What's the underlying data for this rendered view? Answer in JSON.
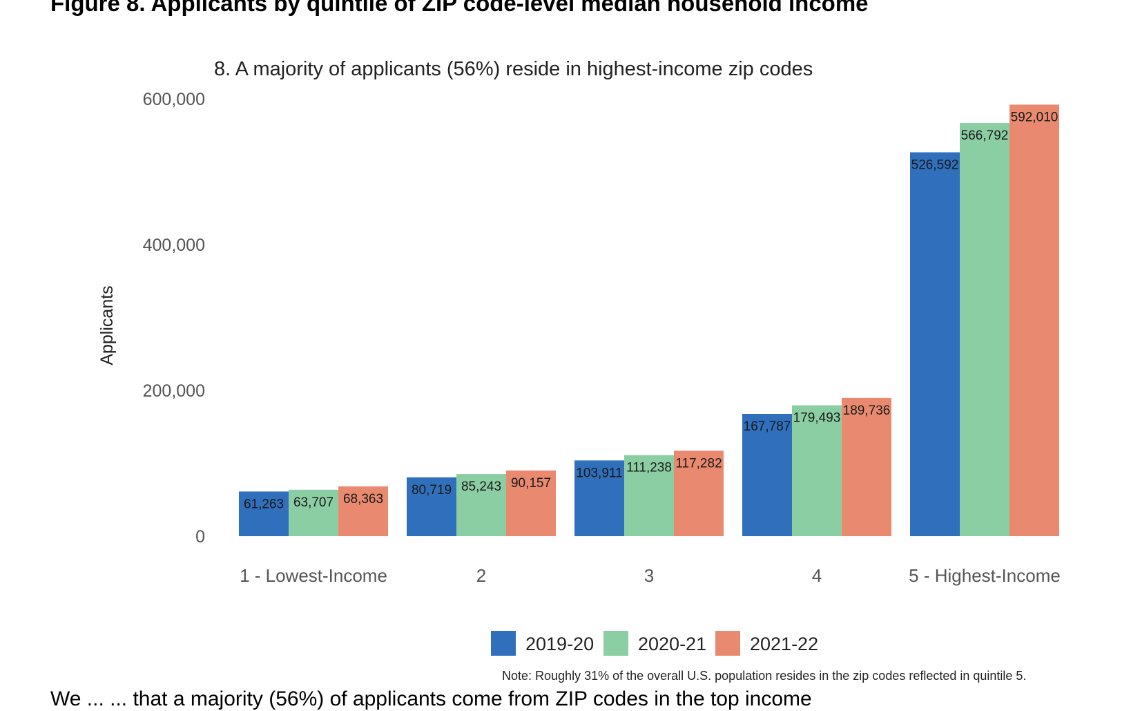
{
  "heading": "Figure 8. Applicants by quintile of ZIP code-level median household income",
  "note": "Note: Roughly 31% of the overall U.S. population resides in the zip codes reflected in quintile 5.",
  "body_text_fragment": "We ... ... that a majority (56%) of applicants come from ZIP codes in the top income",
  "colors": {
    "2019-20": "#2f6fbc",
    "2020-21": "#8ccea3",
    "2021-22": "#e98a70"
  },
  "chart_data": {
    "type": "bar",
    "title": "8. A majority of applicants (56%) reside in highest-income zip codes",
    "ylabel": "Applicants",
    "xlabel": "",
    "ylim": [
      0,
      600000
    ],
    "yticks": [
      "0",
      "200,000",
      "400,000",
      "600,000"
    ],
    "ytick_values": [
      0,
      200000,
      400000,
      600000
    ],
    "grid": false,
    "legend": "bottom-center",
    "categories": [
      "1 - Lowest-Income",
      "2",
      "3",
      "4",
      "5 - Highest-Income"
    ],
    "series": [
      {
        "name": "2019-20",
        "values": [
          61263,
          80719,
          103911,
          167787,
          526592
        ],
        "labels": [
          "61,263",
          "80,719",
          "103,911",
          "167,787",
          "526,592"
        ]
      },
      {
        "name": "2020-21",
        "values": [
          63707,
          85243,
          111238,
          179493,
          566792
        ],
        "labels": [
          "63,707",
          "85,243",
          "111,238",
          "179,493",
          "566,792"
        ]
      },
      {
        "name": "2021-22",
        "values": [
          68363,
          90157,
          117282,
          189736,
          592010
        ],
        "labels": [
          "68,363",
          "90,157",
          "117,282",
          "189,736",
          "592,010"
        ]
      }
    ]
  }
}
